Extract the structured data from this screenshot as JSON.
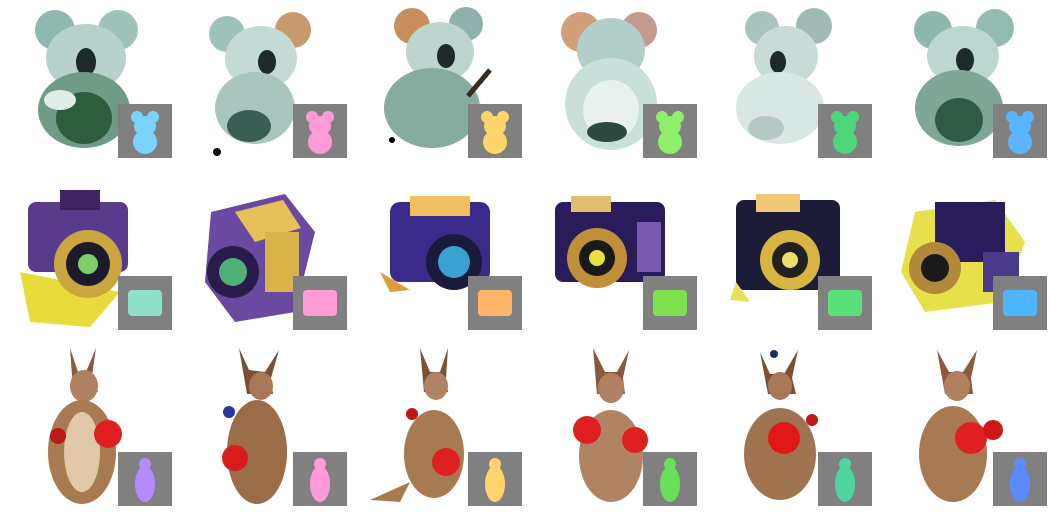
{
  "grid": {
    "rows": [
      {
        "subject": "koala",
        "views": [
          {
            "normal_hue": "#7ad3ff"
          },
          {
            "normal_hue": "#ff9ad6"
          },
          {
            "normal_hue": "#ffd46a"
          },
          {
            "normal_hue": "#8ef06a"
          },
          {
            "normal_hue": "#4dd67a"
          },
          {
            "normal_hue": "#5ab4ff"
          }
        ]
      },
      {
        "subject": "camera",
        "views": [
          {
            "normal_hue": "#8fe0c8"
          },
          {
            "normal_hue": "#ff9ad6"
          },
          {
            "normal_hue": "#ffb46a"
          },
          {
            "normal_hue": "#7ee04d"
          },
          {
            "normal_hue": "#5ae07a"
          },
          {
            "normal_hue": "#4db4ff"
          }
        ]
      },
      {
        "subject": "kangaroo",
        "views": [
          {
            "normal_hue": "#b48aff"
          },
          {
            "normal_hue": "#ff9ad6"
          },
          {
            "normal_hue": "#ffd46a"
          },
          {
            "normal_hue": "#6ae05a"
          },
          {
            "normal_hue": "#4dd6a0"
          },
          {
            "normal_hue": "#5a8cff"
          }
        ]
      }
    ]
  }
}
